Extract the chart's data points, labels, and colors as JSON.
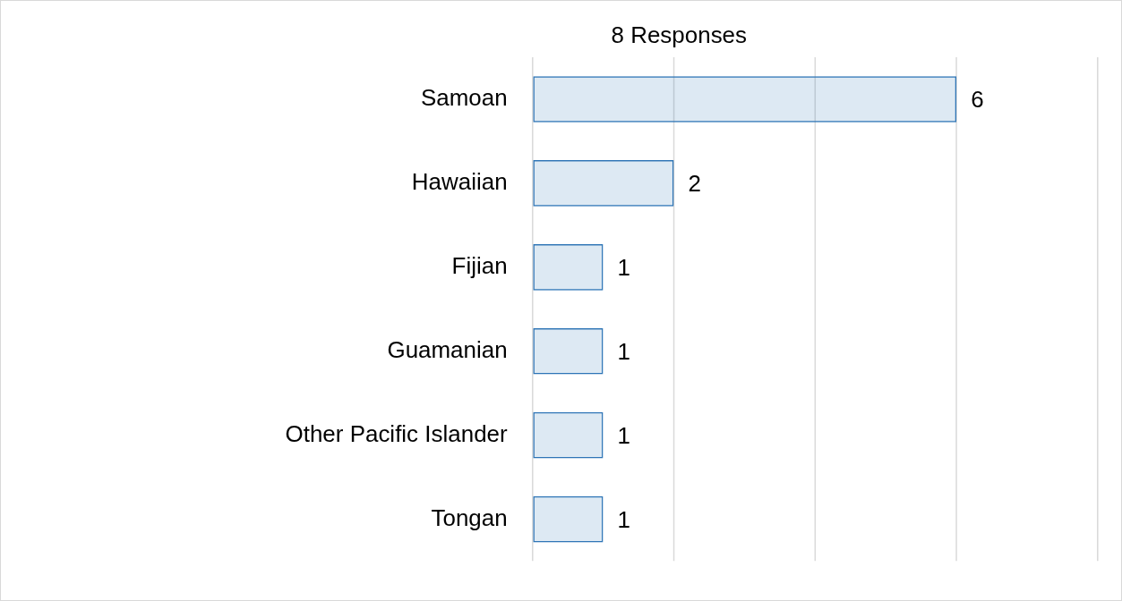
{
  "chart_data": {
    "type": "bar",
    "orientation": "horizontal",
    "title": "8 Responses",
    "categories": [
      "Samoan",
      "Hawaiian",
      "Fijian",
      "Guamanian",
      "Other Pacific Islander",
      "Tongan"
    ],
    "values": [
      6,
      2,
      1,
      1,
      1,
      1
    ],
    "color": "#2e75b6",
    "xlim": [
      0,
      8
    ],
    "xticks": [
      {
        "value": 0,
        "label": null
      },
      {
        "value": 2,
        "label": null
      },
      {
        "value": 4,
        "label": null
      },
      {
        "value": 6,
        "label": null
      },
      {
        "value": 8,
        "label": null
      }
    ],
    "grid": "x",
    "tick_labels": "y",
    "data_labels": true,
    "legend": false
  }
}
